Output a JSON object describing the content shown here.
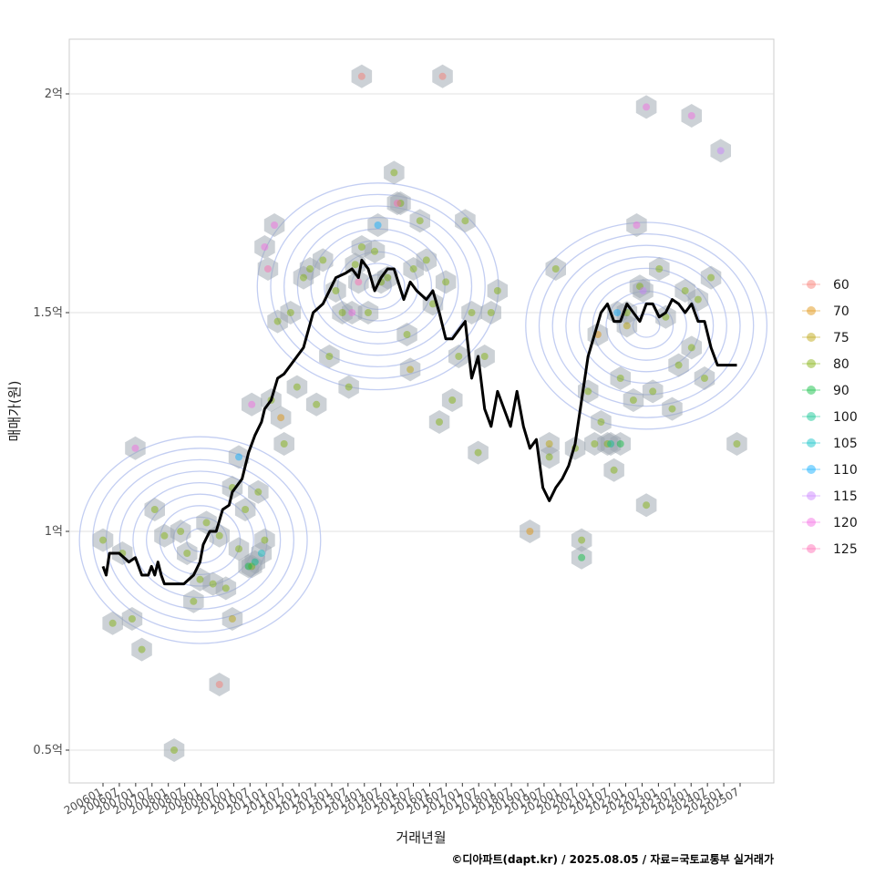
{
  "chart_data": {
    "type": "scatter",
    "xlabel": "거래년월",
    "ylabel": "매매가(원)",
    "caption": "©디아파트(dapt.kr) / 2025.08.05 / 자료=국토교통부 실거래가",
    "xlim": [
      2006.0,
      2025.7
    ],
    "ylim": [
      0.42,
      2.12
    ],
    "grid": true,
    "legend_position": "right",
    "y_ticks": [
      {
        "value": 0.5,
        "label": "0.5억"
      },
      {
        "value": 1.0,
        "label": "1억"
      },
      {
        "value": 1.5,
        "label": "1.5억"
      },
      {
        "value": 2.0,
        "label": "2억"
      }
    ],
    "x_ticks": [
      "200601",
      "200607",
      "200701",
      "200707",
      "200801",
      "200807",
      "200901",
      "200907",
      "201001",
      "201007",
      "201101",
      "201107",
      "201201",
      "201207",
      "201301",
      "201307",
      "201401",
      "201407",
      "201501",
      "201507",
      "201601",
      "201607",
      "201701",
      "201707",
      "201801",
      "201807",
      "201901",
      "201907",
      "202001",
      "202007",
      "202101",
      "202107",
      "202201",
      "202207",
      "202301",
      "202307",
      "202401",
      "202407",
      "202501",
      "202507"
    ],
    "legend": [
      {
        "label": "60",
        "color": "#F8766D"
      },
      {
        "label": "70",
        "color": "#DE8C00"
      },
      {
        "label": "75",
        "color": "#B79F00"
      },
      {
        "label": "80",
        "color": "#7CAE00"
      },
      {
        "label": "90",
        "color": "#00BA38"
      },
      {
        "label": "100",
        "color": "#00C08B"
      },
      {
        "label": "105",
        "color": "#00BFC4"
      },
      {
        "label": "110",
        "color": "#00A9FF"
      },
      {
        "label": "115",
        "color": "#C77CFF"
      },
      {
        "label": "120",
        "color": "#F564E3"
      },
      {
        "label": "125",
        "color": "#FF64B0"
      }
    ],
    "trend_line": {
      "name": "moving median",
      "x": [
        2006.0,
        2006.1,
        2006.2,
        2006.5,
        2006.8,
        2007.0,
        2007.2,
        2007.4,
        2007.5,
        2007.6,
        2007.7,
        2007.8,
        2007.9,
        2008.0,
        2008.2,
        2008.5,
        2008.8,
        2009.0,
        2009.1,
        2009.3,
        2009.5,
        2009.7,
        2009.9,
        2010.0,
        2010.3,
        2010.5,
        2010.7,
        2010.9,
        2011.0,
        2011.2,
        2011.4,
        2011.6,
        2011.8,
        2012.0,
        2012.2,
        2012.5,
        2012.8,
        2013.0,
        2013.2,
        2013.5,
        2013.7,
        2013.9,
        2014.0,
        2014.2,
        2014.4,
        2014.6,
        2014.8,
        2015.0,
        2015.3,
        2015.5,
        2015.7,
        2016.0,
        2016.2,
        2016.4,
        2016.6,
        2016.8,
        2017.0,
        2017.2,
        2017.4,
        2017.6,
        2017.8,
        2018.0,
        2018.2,
        2018.4,
        2018.6,
        2018.8,
        2019.0,
        2019.2,
        2019.4,
        2019.6,
        2019.8,
        2020.0,
        2020.2,
        2020.4,
        2020.6,
        2020.8,
        2021.0,
        2021.2,
        2021.4,
        2021.6,
        2021.8,
        2022.0,
        2022.2,
        2022.4,
        2022.6,
        2022.8,
        2023.0,
        2023.2,
        2023.4,
        2023.6,
        2023.8,
        2024.0,
        2024.2,
        2024.4,
        2024.6,
        2024.8,
        2025.0,
        2025.2,
        2025.4,
        2025.6
      ],
      "y": [
        0.92,
        0.9,
        0.95,
        0.95,
        0.93,
        0.94,
        0.9,
        0.9,
        0.92,
        0.9,
        0.93,
        0.9,
        0.88,
        0.88,
        0.88,
        0.88,
        0.9,
        0.93,
        0.97,
        1.0,
        1.0,
        1.05,
        1.06,
        1.09,
        1.12,
        1.18,
        1.22,
        1.25,
        1.28,
        1.3,
        1.35,
        1.36,
        1.38,
        1.4,
        1.42,
        1.5,
        1.52,
        1.55,
        1.58,
        1.59,
        1.6,
        1.58,
        1.62,
        1.6,
        1.55,
        1.58,
        1.6,
        1.6,
        1.53,
        1.57,
        1.55,
        1.53,
        1.55,
        1.5,
        1.44,
        1.44,
        1.46,
        1.48,
        1.35,
        1.4,
        1.28,
        1.24,
        1.32,
        1.28,
        1.24,
        1.32,
        1.24,
        1.19,
        1.21,
        1.1,
        1.07,
        1.1,
        1.12,
        1.15,
        1.2,
        1.3,
        1.4,
        1.45,
        1.5,
        1.52,
        1.48,
        1.48,
        1.52,
        1.5,
        1.48,
        1.52,
        1.52,
        1.49,
        1.5,
        1.53,
        1.52,
        1.5,
        1.52,
        1.48,
        1.48,
        1.42,
        1.38,
        1.38,
        1.38,
        1.38
      ]
    },
    "density_peaks": [
      {
        "x": 2009.0,
        "y": 0.98
      },
      {
        "x": 2014.5,
        "y": 1.56
      },
      {
        "x": 2022.8,
        "y": 1.47
      }
    ],
    "series": [
      {
        "name": "60",
        "points": [
          [
            2009.6,
            0.65
          ],
          [
            2014.0,
            2.04
          ],
          [
            2016.5,
            2.04
          ]
        ]
      },
      {
        "name": "70",
        "points": [
          [
            2011.5,
            1.26
          ],
          [
            2019.2,
            1.0
          ],
          [
            2021.3,
            1.45
          ]
        ]
      },
      {
        "name": "75",
        "points": [
          [
            2010.0,
            0.8
          ],
          [
            2015.5,
            1.37
          ],
          [
            2019.8,
            1.2
          ],
          [
            2022.2,
            1.47
          ]
        ]
      },
      {
        "name": "80",
        "points": [
          [
            2006.0,
            0.98
          ],
          [
            2006.3,
            0.79
          ],
          [
            2006.6,
            0.95
          ],
          [
            2006.9,
            0.8
          ],
          [
            2007.2,
            0.73
          ],
          [
            2007.6,
            1.05
          ],
          [
            2007.9,
            0.99
          ],
          [
            2008.2,
            0.5
          ],
          [
            2008.4,
            1.0
          ],
          [
            2008.6,
            0.95
          ],
          [
            2008.8,
            0.84
          ],
          [
            2009.0,
            0.89
          ],
          [
            2009.2,
            1.02
          ],
          [
            2009.4,
            0.88
          ],
          [
            2009.6,
            0.99
          ],
          [
            2009.8,
            0.87
          ],
          [
            2010.0,
            1.1
          ],
          [
            2010.2,
            0.96
          ],
          [
            2010.4,
            1.05
          ],
          [
            2010.6,
            0.92
          ],
          [
            2010.8,
            1.09
          ],
          [
            2011.0,
            0.98
          ],
          [
            2011.2,
            1.3
          ],
          [
            2011.4,
            1.48
          ],
          [
            2011.6,
            1.2
          ],
          [
            2011.8,
            1.5
          ],
          [
            2012.0,
            1.33
          ],
          [
            2012.2,
            1.58
          ],
          [
            2012.4,
            1.6
          ],
          [
            2012.6,
            1.29
          ],
          [
            2012.8,
            1.62
          ],
          [
            2013.0,
            1.4
          ],
          [
            2013.2,
            1.55
          ],
          [
            2013.4,
            1.5
          ],
          [
            2013.6,
            1.33
          ],
          [
            2013.8,
            1.61
          ],
          [
            2014.0,
            1.65
          ],
          [
            2014.2,
            1.5
          ],
          [
            2014.4,
            1.64
          ],
          [
            2014.6,
            1.57
          ],
          [
            2014.8,
            1.58
          ],
          [
            2015.0,
            1.82
          ],
          [
            2015.2,
            1.75
          ],
          [
            2015.4,
            1.45
          ],
          [
            2015.6,
            1.6
          ],
          [
            2015.8,
            1.71
          ],
          [
            2016.0,
            1.62
          ],
          [
            2016.2,
            1.52
          ],
          [
            2016.4,
            1.25
          ],
          [
            2016.6,
            1.57
          ],
          [
            2016.8,
            1.3
          ],
          [
            2017.0,
            1.4
          ],
          [
            2017.2,
            1.71
          ],
          [
            2017.4,
            1.5
          ],
          [
            2017.6,
            1.18
          ],
          [
            2017.8,
            1.4
          ],
          [
            2018.0,
            1.5
          ],
          [
            2018.2,
            1.55
          ],
          [
            2019.8,
            1.17
          ],
          [
            2020.0,
            1.6
          ],
          [
            2020.6,
            1.19
          ],
          [
            2020.8,
            0.98
          ],
          [
            2021.0,
            1.32
          ],
          [
            2021.2,
            1.2
          ],
          [
            2021.4,
            1.25
          ],
          [
            2021.6,
            1.2
          ],
          [
            2021.8,
            1.14
          ],
          [
            2022.0,
            1.35
          ],
          [
            2022.2,
            1.5
          ],
          [
            2022.4,
            1.3
          ],
          [
            2022.6,
            1.56
          ],
          [
            2022.8,
            1.06
          ],
          [
            2023.0,
            1.32
          ],
          [
            2023.2,
            1.6
          ],
          [
            2023.4,
            1.49
          ],
          [
            2023.6,
            1.28
          ],
          [
            2023.8,
            1.38
          ],
          [
            2024.0,
            1.55
          ],
          [
            2024.2,
            1.42
          ],
          [
            2024.4,
            1.53
          ],
          [
            2024.6,
            1.35
          ],
          [
            2024.8,
            1.58
          ],
          [
            2025.6,
            1.2
          ]
        ]
      },
      {
        "name": "90",
        "points": [
          [
            2010.5,
            0.92
          ],
          [
            2020.8,
            0.94
          ],
          [
            2022.0,
            1.2
          ]
        ]
      },
      {
        "name": "100",
        "points": [
          [
            2010.7,
            0.93
          ],
          [
            2021.7,
            1.2
          ]
        ]
      },
      {
        "name": "105",
        "points": [
          [
            2010.9,
            0.95
          ]
        ]
      },
      {
        "name": "110",
        "points": [
          [
            2010.2,
            1.17
          ],
          [
            2014.5,
            1.7
          ],
          [
            2021.9,
            1.5
          ]
        ]
      },
      {
        "name": "115",
        "points": [
          [
            2022.7,
            1.55
          ],
          [
            2025.1,
            1.87
          ]
        ]
      },
      {
        "name": "120",
        "points": [
          [
            2007.0,
            1.19
          ],
          [
            2010.6,
            1.29
          ],
          [
            2011.0,
            1.65
          ],
          [
            2011.3,
            1.7
          ],
          [
            2013.7,
            1.5
          ],
          [
            2022.5,
            1.7
          ],
          [
            2022.8,
            1.97
          ],
          [
            2024.2,
            1.95
          ]
        ]
      },
      {
        "name": "125",
        "points": [
          [
            2011.1,
            1.6
          ],
          [
            2013.9,
            1.57
          ],
          [
            2015.1,
            1.75
          ]
        ]
      }
    ]
  }
}
